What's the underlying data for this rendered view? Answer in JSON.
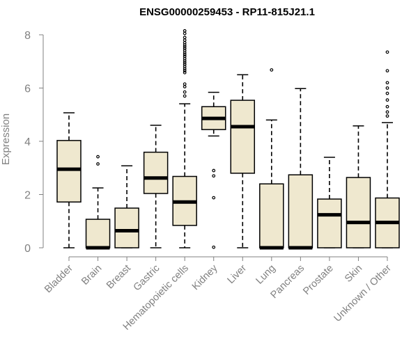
{
  "chart_data": {
    "type": "boxplot",
    "title": "ENSG00000259453 - RP11-815J21.1",
    "xlabel": "",
    "ylabel": "Expression",
    "ylim": [
      0,
      8
    ],
    "yticks": [
      0,
      2,
      4,
      6,
      8
    ],
    "categories": [
      "Bladder",
      "Brain",
      "Breast",
      "Gastric",
      "Hematopoietic cells",
      "Kidney",
      "Liver",
      "Lung",
      "Pancreas",
      "Prostate",
      "Skin",
      "Unknown / Other"
    ],
    "boxes": [
      {
        "min": 0,
        "q1": 1.72,
        "median": 2.95,
        "q3": 4.03,
        "max": 5.07,
        "outliers": []
      },
      {
        "min": 0,
        "q1": 0,
        "median": 0,
        "q3": 1.07,
        "max": 2.25,
        "outliers": [
          3.15,
          3.42
        ]
      },
      {
        "min": 0,
        "q1": 0,
        "median": 0.64,
        "q3": 1.49,
        "max": 3.08,
        "outliers": []
      },
      {
        "min": 0,
        "q1": 2.04,
        "median": 2.62,
        "q3": 3.59,
        "max": 4.6,
        "outliers": []
      },
      {
        "min": 0,
        "q1": 0.84,
        "median": 1.72,
        "q3": 2.68,
        "max": 5.41,
        "outliers": [
          5.7,
          5.85,
          6.05,
          6.15,
          6.58,
          6.65,
          6.72,
          6.8,
          6.88,
          6.95,
          7.02,
          7.1,
          7.18,
          7.25,
          7.32,
          7.4,
          7.48,
          7.55,
          7.62,
          7.7,
          7.8,
          7.9,
          8.05,
          8.15
        ]
      },
      {
        "min": 4.2,
        "q1": 4.44,
        "median": 4.86,
        "q3": 5.3,
        "max": 5.84,
        "outliers": [
          0.02,
          1.88,
          2.7,
          2.9
        ]
      },
      {
        "min": 0,
        "q1": 2.8,
        "median": 4.55,
        "q3": 5.54,
        "max": 6.5,
        "outliers": []
      },
      {
        "min": 0,
        "q1": 0,
        "median": 0,
        "q3": 2.4,
        "max": 4.8,
        "outliers": [
          6.68
        ]
      },
      {
        "min": 0,
        "q1": 0,
        "median": 0,
        "q3": 2.74,
        "max": 5.98,
        "outliers": []
      },
      {
        "min": 0,
        "q1": 0,
        "median": 1.24,
        "q3": 1.83,
        "max": 3.4,
        "outliers": []
      },
      {
        "min": 0,
        "q1": 0,
        "median": 0.95,
        "q3": 2.64,
        "max": 4.58,
        "outliers": []
      },
      {
        "min": 0,
        "q1": 0,
        "median": 0.95,
        "q3": 1.87,
        "max": 4.7,
        "outliers": [
          4.95,
          5.1,
          5.3,
          5.55,
          5.8,
          6.0,
          6.2,
          6.65,
          7.35
        ]
      }
    ]
  }
}
